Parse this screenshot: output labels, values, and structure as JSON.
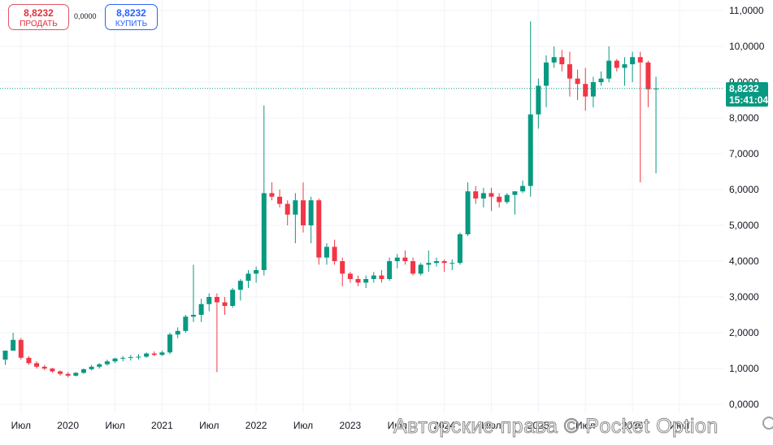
{
  "trade_panel": {
    "sell_price": "8,8232",
    "sell_label": "ПРОДАТЬ",
    "spread": "0,0000",
    "buy_price": "8,8232",
    "buy_label": "КУПИТЬ"
  },
  "price_tag": {
    "price": "8,8232",
    "countdown": "15:41:04"
  },
  "watermark": "Авторские права © Pocket Option",
  "colors": {
    "up": "#089981",
    "down": "#f23645",
    "grid": "#f0f3fa",
    "axis_text": "#131722"
  },
  "chart_data": {
    "type": "candlestick",
    "interval": "1 month",
    "current_price": 8.8232,
    "ylim": [
      -0.1,
      11.2
    ],
    "y_ticks": [
      {
        "value": 11,
        "label": "11,0000"
      },
      {
        "value": 10,
        "label": "10,0000"
      },
      {
        "value": 9,
        "label": "9,0000"
      },
      {
        "value": 8,
        "label": "8,0000"
      },
      {
        "value": 7,
        "label": "7,0000"
      },
      {
        "value": 6,
        "label": "6,0000"
      },
      {
        "value": 5,
        "label": "5,0000"
      },
      {
        "value": 4,
        "label": "4,0000"
      },
      {
        "value": 3,
        "label": "3,0000"
      },
      {
        "value": 2,
        "label": "2,0000"
      },
      {
        "value": 1,
        "label": "1,0000"
      },
      {
        "value": 0,
        "label": "0,0000"
      }
    ],
    "x_ticks": [
      {
        "index": 2,
        "label": "Июл"
      },
      {
        "index": 8,
        "label": "2020"
      },
      {
        "index": 14,
        "label": "Июл"
      },
      {
        "index": 20,
        "label": "2021"
      },
      {
        "index": 26,
        "label": "Июл"
      },
      {
        "index": 32,
        "label": "2022"
      },
      {
        "index": 38,
        "label": "Июл"
      },
      {
        "index": 44,
        "label": "2023"
      },
      {
        "index": 50,
        "label": "Июл"
      },
      {
        "index": 56,
        "label": "2024"
      },
      {
        "index": 62,
        "label": "Июл"
      },
      {
        "index": 68,
        "label": "2025"
      },
      {
        "index": 74,
        "label": "Июл"
      },
      {
        "index": 80,
        "label": "2026"
      },
      {
        "index": 86,
        "label": "Июл"
      }
    ],
    "candles": [
      [
        1.25,
        1.5,
        1.1,
        1.5
      ],
      [
        1.5,
        2.0,
        1.6,
        1.8
      ],
      [
        1.8,
        1.85,
        1.25,
        1.3
      ],
      [
        1.3,
        1.35,
        1.1,
        1.15
      ],
      [
        1.15,
        1.2,
        1.0,
        1.05
      ],
      [
        1.05,
        1.1,
        0.95,
        1.0
      ],
      [
        1.0,
        1.02,
        0.88,
        0.92
      ],
      [
        0.92,
        0.95,
        0.8,
        0.85
      ],
      [
        0.85,
        0.9,
        0.75,
        0.8
      ],
      [
        0.8,
        0.9,
        0.78,
        0.88
      ],
      [
        0.88,
        1.0,
        0.85,
        0.98
      ],
      [
        0.98,
        1.1,
        0.95,
        1.05
      ],
      [
        1.05,
        1.15,
        1.0,
        1.12
      ],
      [
        1.12,
        1.25,
        1.08,
        1.2
      ],
      [
        1.2,
        1.3,
        1.15,
        1.28
      ],
      [
        1.28,
        1.35,
        1.2,
        1.3
      ],
      [
        1.3,
        1.38,
        1.22,
        1.32
      ],
      [
        1.32,
        1.4,
        1.25,
        1.33
      ],
      [
        1.33,
        1.45,
        1.3,
        1.42
      ],
      [
        1.42,
        1.48,
        1.35,
        1.38
      ],
      [
        1.38,
        1.5,
        1.35,
        1.45
      ],
      [
        1.45,
        2.0,
        1.4,
        1.95
      ],
      [
        1.95,
        2.15,
        1.85,
        2.05
      ],
      [
        2.05,
        2.5,
        2.0,
        2.45
      ],
      [
        2.45,
        3.9,
        2.3,
        2.5
      ],
      [
        2.5,
        2.95,
        2.3,
        2.8
      ],
      [
        2.8,
        3.1,
        2.6,
        3.0
      ],
      [
        3.0,
        3.1,
        0.9,
        2.85
      ],
      [
        2.85,
        3.0,
        2.5,
        2.75
      ],
      [
        2.75,
        3.25,
        2.7,
        3.2
      ],
      [
        3.2,
        3.5,
        2.9,
        3.45
      ],
      [
        3.45,
        3.75,
        3.25,
        3.65
      ],
      [
        3.65,
        3.85,
        3.4,
        3.75
      ],
      [
        3.75,
        8.35,
        3.6,
        5.9
      ],
      [
        5.9,
        6.2,
        5.7,
        5.8
      ],
      [
        5.8,
        6.0,
        5.5,
        5.6
      ],
      [
        5.6,
        5.7,
        5.0,
        5.3
      ],
      [
        5.3,
        5.9,
        4.5,
        5.7
      ],
      [
        5.7,
        6.2,
        4.8,
        5.0
      ],
      [
        5.0,
        5.8,
        4.5,
        5.7
      ],
      [
        5.7,
        5.75,
        3.9,
        4.1
      ],
      [
        4.1,
        4.5,
        3.9,
        4.4
      ],
      [
        4.4,
        4.6,
        3.9,
        4.0
      ],
      [
        4.0,
        4.1,
        3.3,
        3.65
      ],
      [
        3.65,
        3.7,
        3.4,
        3.5
      ],
      [
        3.5,
        3.6,
        3.3,
        3.4
      ],
      [
        3.4,
        3.6,
        3.25,
        3.5
      ],
      [
        3.5,
        3.7,
        3.4,
        3.6
      ],
      [
        3.6,
        3.75,
        3.4,
        3.5
      ],
      [
        3.5,
        4.1,
        3.45,
        4.0
      ],
      [
        4.0,
        4.2,
        3.8,
        4.1
      ],
      [
        4.1,
        4.3,
        3.9,
        4.0
      ],
      [
        4.0,
        4.1,
        3.6,
        3.65
      ],
      [
        3.65,
        3.95,
        3.6,
        3.9
      ],
      [
        3.9,
        4.3,
        3.7,
        3.95
      ],
      [
        3.95,
        4.1,
        3.85,
        4.0
      ],
      [
        4.0,
        4.05,
        3.7,
        3.95
      ],
      [
        3.95,
        4.05,
        3.75,
        3.95
      ],
      [
        3.95,
        4.8,
        3.9,
        4.75
      ],
      [
        4.75,
        6.2,
        4.7,
        5.95
      ],
      [
        5.95,
        6.1,
        5.6,
        5.75
      ],
      [
        5.75,
        6.05,
        5.5,
        5.9
      ],
      [
        5.9,
        6.05,
        5.4,
        5.8
      ],
      [
        5.8,
        5.9,
        5.5,
        5.65
      ],
      [
        5.65,
        5.9,
        5.6,
        5.85
      ],
      [
        5.85,
        5.95,
        5.3,
        5.95
      ],
      [
        5.95,
        6.25,
        5.9,
        6.1
      ],
      [
        6.1,
        10.7,
        5.8,
        8.1
      ],
      [
        8.1,
        9.1,
        7.7,
        8.9
      ],
      [
        8.9,
        9.75,
        8.3,
        9.55
      ],
      [
        9.55,
        10.0,
        9.4,
        9.7
      ],
      [
        9.7,
        9.9,
        9.3,
        9.5
      ],
      [
        9.5,
        9.85,
        8.6,
        9.1
      ],
      [
        9.1,
        9.35,
        8.5,
        8.95
      ],
      [
        8.95,
        9.4,
        8.2,
        8.6
      ],
      [
        8.6,
        9.15,
        8.3,
        9.0
      ],
      [
        9.0,
        9.3,
        8.9,
        9.1
      ],
      [
        9.1,
        10.0,
        9.0,
        9.6
      ],
      [
        9.6,
        9.65,
        9.3,
        9.4
      ],
      [
        9.4,
        9.7,
        8.9,
        9.5
      ],
      [
        9.5,
        9.85,
        9.0,
        9.7
      ],
      [
        9.7,
        9.85,
        6.2,
        9.55
      ],
      [
        9.55,
        9.6,
        8.3,
        8.8
      ],
      [
        8.8,
        9.15,
        6.45,
        8.8232
      ]
    ]
  }
}
